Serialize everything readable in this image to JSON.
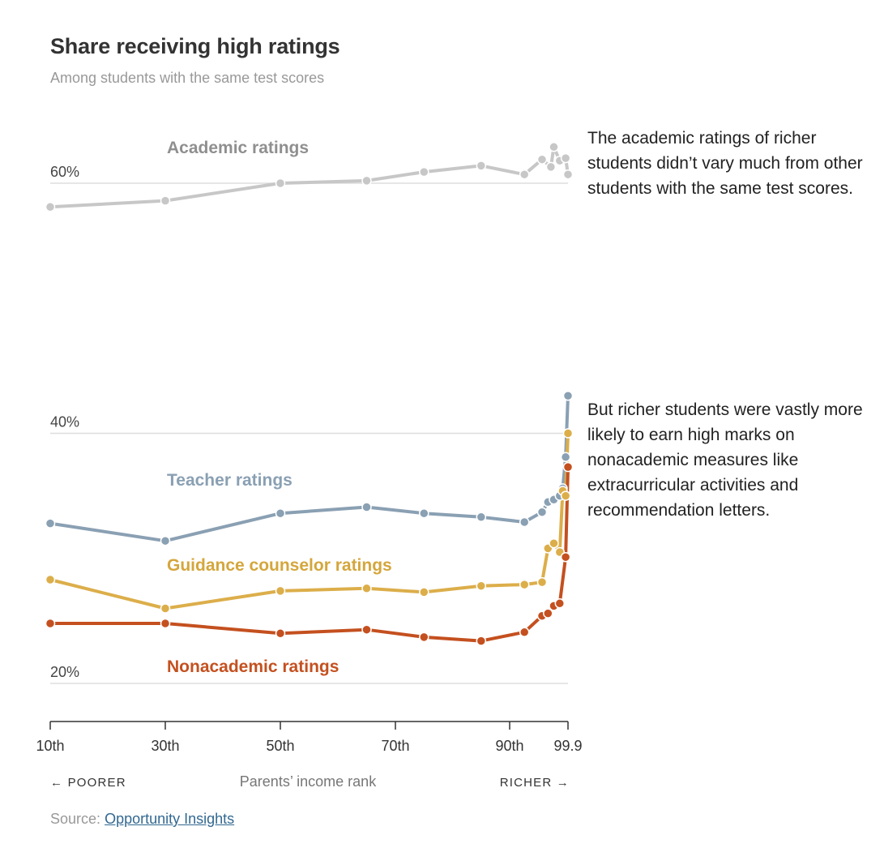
{
  "title": "Share receiving high ratings",
  "subtitle": "Among students with the same test scores",
  "annotations": {
    "academic": "The academic ratings of richer students didn’t vary much from other students with the same test scores.",
    "nonacademic": "But richer students were vastly more likely to earn high marks on nonacademic measures like extracurricular activities and recommendation letters."
  },
  "source": {
    "label": "Source:",
    "link_text": "Opportunity Insights"
  },
  "chart_data": {
    "type": "line",
    "title": "Share receiving high ratings",
    "subtitle": "Among students with the same test scores",
    "xlabel": "Parents’ income rank",
    "ylabel": "",
    "xlim": [
      10,
      99.9
    ],
    "ylim": [
      16,
      66
    ],
    "y_gridlines": [
      20,
      40,
      60
    ],
    "y_tick_labels": [
      "20%",
      "40%",
      "60%"
    ],
    "x_ticks": [
      10,
      30,
      50,
      70,
      90,
      99.9
    ],
    "x_tick_labels": [
      "10th",
      "30th",
      "50th",
      "70th",
      "90th",
      "99.9"
    ],
    "axis_direction_labels": {
      "left": "← POORER",
      "right": "RICHER →"
    },
    "series": [
      {
        "name": "Academic ratings",
        "color": "#c7c7c7",
        "label_color": "#8f8f8f",
        "x": [
          10,
          30,
          50,
          65,
          75,
          85,
          92.5,
          95.5,
          97,
          97.5,
          98.5,
          99.5,
          99.9
        ],
        "y": [
          58.1,
          58.6,
          60.0,
          60.2,
          60.9,
          61.4,
          60.7,
          61.9,
          61.3,
          62.9,
          61.8,
          62.0,
          60.7
        ]
      },
      {
        "name": "Teacher ratings",
        "color": "#8aa0b3",
        "label_color": "#8aa0b3",
        "x": [
          10,
          30,
          50,
          65,
          75,
          85,
          92.5,
          95.5,
          96.5,
          97.5,
          98.5,
          99,
          99.5,
          99.9
        ],
        "y": [
          32.8,
          31.4,
          33.6,
          34.1,
          33.6,
          33.3,
          32.9,
          33.7,
          34.5,
          34.7,
          35.0,
          35.6,
          38.1,
          43.0
        ]
      },
      {
        "name": "Guidance counselor ratings",
        "color": "#dcae4a",
        "label_color": "#d4a63c",
        "x": [
          10,
          30,
          50,
          65,
          75,
          85,
          92.5,
          95.5,
          96.5,
          97.5,
          98.5,
          99,
          99.5,
          99.9
        ],
        "y": [
          28.3,
          26.0,
          27.4,
          27.6,
          27.3,
          27.8,
          27.9,
          28.1,
          30.8,
          31.2,
          30.5,
          35.4,
          35.0,
          40.0
        ]
      },
      {
        "name": "Nonacademic ratings",
        "color": "#c4501f",
        "label_color": "#c4501f",
        "x": [
          10,
          30,
          50,
          65,
          75,
          85,
          92.5,
          95.5,
          96.5,
          97.5,
          98.5,
          99.5,
          99.9
        ],
        "y": [
          24.8,
          24.8,
          24.0,
          24.3,
          23.7,
          23.4,
          24.1,
          25.4,
          25.6,
          26.2,
          26.4,
          30.1,
          37.3
        ]
      }
    ],
    "series_label_text": [
      "Academic ratings",
      "Teacher ratings",
      "Guidance counselor ratings",
      "Nonacademic ratings"
    ]
  }
}
